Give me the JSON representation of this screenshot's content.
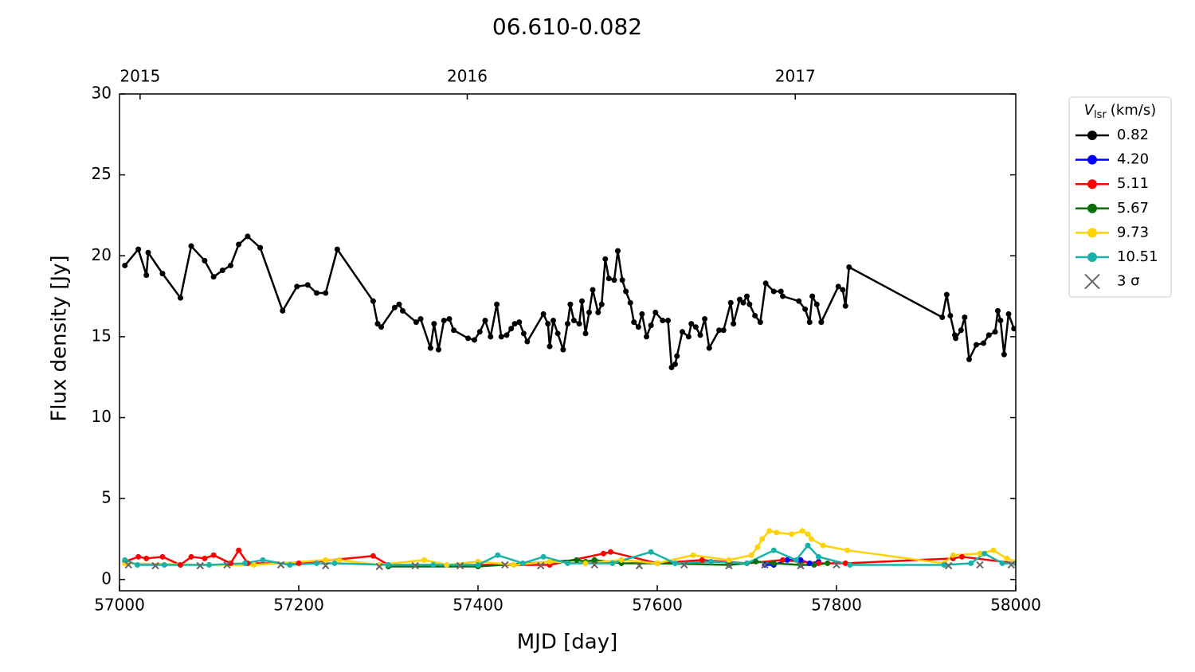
{
  "chart_data": {
    "type": "line",
    "title": "06.610-0.082",
    "xlabel": "MJD [day]",
    "ylabel": "Flux density [Jy]",
    "xlim": [
      57000,
      58000
    ],
    "xticks": [
      57000,
      57200,
      57400,
      57600,
      57800,
      58000
    ],
    "x2lim": [
      57000,
      58000
    ],
    "x2ticks": [
      {
        "value": 57023,
        "label": "2015"
      },
      {
        "value": 57388,
        "label": "2016"
      },
      {
        "value": 57754,
        "label": "2017"
      }
    ],
    "ylim": [
      -0.7,
      30
    ],
    "yticks": [
      0,
      5,
      10,
      15,
      20,
      25,
      30
    ],
    "grid": false,
    "legend": "outside right",
    "legend_title": {
      "symbol": "V",
      "subscript": "lsr",
      "unit": "(km/s)"
    },
    "series": [
      {
        "name": "0.82",
        "color": "#000000",
        "marker": "o",
        "line": true,
        "x": [
          57006,
          57021,
          57030,
          57032,
          57048,
          57068,
          57080,
          57095,
          57105,
          57115,
          57124,
          57133,
          57143,
          57157,
          57182,
          57198,
          57210,
          57220,
          57230,
          57243,
          57283,
          57288,
          57292,
          57307,
          57312,
          57316,
          57331,
          57336,
          57347,
          57351,
          57356,
          57362,
          57368,
          57373,
          57389,
          57396,
          57402,
          57408,
          57414,
          57421,
          57426,
          57432,
          57437,
          57441,
          57446,
          57451,
          57455,
          57473,
          57478,
          57480,
          57484,
          57489,
          57495,
          57500,
          57503,
          57507,
          57513,
          57516,
          57520,
          57524,
          57528,
          57534,
          57538,
          57542,
          57546,
          57552,
          57556,
          57561,
          57565,
          57570,
          57574,
          57579,
          57583,
          57588,
          57593,
          57598,
          57606,
          57612,
          57616,
          57620,
          57622,
          57628,
          57635,
          57638,
          57643,
          57648,
          57653,
          57658,
          57669,
          57674,
          57682,
          57685,
          57692,
          57696,
          57700,
          57703,
          57709,
          57715,
          57721,
          57730,
          57738,
          57740,
          57758,
          57765,
          57770,
          57773,
          57778,
          57783,
          57802,
          57807,
          57810,
          57814,
          57918,
          57923,
          57927,
          57932,
          57933,
          57939,
          57943,
          57948,
          57956,
          57964,
          57970,
          57977,
          57980,
          57983,
          57987,
          57992,
          57998
        ],
        "values": [
          19.4,
          20.4,
          18.8,
          20.2,
          18.9,
          17.4,
          20.6,
          19.7,
          18.7,
          19.1,
          19.4,
          20.7,
          21.2,
          20.5,
          16.6,
          18.1,
          18.2,
          17.7,
          17.7,
          20.4,
          17.2,
          15.8,
          15.6,
          16.8,
          17.0,
          16.6,
          15.9,
          16.1,
          14.3,
          15.8,
          14.2,
          16.0,
          16.1,
          15.4,
          14.9,
          14.8,
          15.3,
          16.0,
          15.0,
          17.0,
          15.0,
          15.1,
          15.5,
          15.8,
          15.9,
          15.2,
          14.7,
          16.4,
          15.8,
          14.4,
          16.0,
          15.2,
          14.2,
          15.8,
          17.0,
          16.0,
          15.8,
          17.2,
          15.2,
          16.5,
          17.9,
          16.5,
          17.0,
          19.8,
          18.6,
          18.5,
          20.3,
          18.5,
          17.8,
          17.1,
          15.9,
          15.6,
          16.4,
          15.0,
          15.7,
          16.5,
          16.0,
          16.0,
          13.1,
          13.3,
          13.8,
          15.3,
          15.0,
          15.8,
          15.6,
          15.1,
          16.1,
          14.3,
          15.4,
          15.4,
          17.1,
          15.8,
          17.3,
          17.1,
          17.5,
          17.0,
          16.3,
          15.9,
          18.3,
          17.8,
          17.8,
          17.5,
          17.2,
          16.7,
          15.9,
          17.5,
          17.0,
          15.9,
          18.1,
          17.9,
          16.9,
          19.3,
          16.2,
          17.6,
          16.3,
          15.1,
          14.9,
          15.4,
          16.2,
          13.6,
          14.5,
          14.6,
          15.1,
          15.3,
          16.6,
          16.0,
          13.9,
          16.4,
          15.5
        ]
      },
      {
        "name": "4.20",
        "color": "#0000ff",
        "marker": "o",
        "line": true,
        "x": [
          57720,
          57730,
          57745,
          57760,
          57770,
          57780
        ],
        "values": [
          0.9,
          0.9,
          1.2,
          1.2,
          1.0,
          1.1
        ]
      },
      {
        "name": "5.11",
        "color": "#ff0000",
        "marker": "o",
        "line": true,
        "x": [
          57006,
          57021,
          57030,
          57048,
          57068,
          57080,
          57095,
          57105,
          57124,
          57133,
          57143,
          57200,
          57283,
          57300,
          57400,
          57480,
          57540,
          57548,
          57600,
          57650,
          57700,
          57740,
          57780,
          57810,
          57930,
          57940,
          58000
        ],
        "values": [
          1.1,
          1.4,
          1.3,
          1.4,
          0.9,
          1.4,
          1.3,
          1.5,
          1.0,
          1.8,
          1.0,
          1.0,
          1.45,
          0.9,
          0.9,
          0.9,
          1.6,
          1.7,
          1.0,
          1.2,
          1.0,
          1.2,
          1.0,
          1.0,
          1.3,
          1.4,
          1.0
        ]
      },
      {
        "name": "5.67",
        "color": "#0a6e0a",
        "marker": "o",
        "line": true,
        "x": [
          57300,
          57400,
          57510,
          57520,
          57530,
          57560,
          57600,
          57680,
          57700,
          57710,
          57730,
          57760,
          57775,
          57790
        ],
        "values": [
          0.8,
          0.8,
          1.2,
          1.1,
          1.2,
          1.0,
          1.0,
          0.9,
          1.0,
          1.1,
          1.0,
          0.9,
          0.9,
          1.0
        ]
      },
      {
        "name": "9.73",
        "color": "#ffd200",
        "marker": "o",
        "line": true,
        "x": [
          57006,
          57100,
          57150,
          57230,
          57245,
          57290,
          57340,
          57365,
          57400,
          57440,
          57480,
          57520,
          57560,
          57600,
          57640,
          57680,
          57705,
          57712,
          57717,
          57725,
          57733,
          57750,
          57762,
          57768,
          57772,
          57785,
          57812,
          57920,
          57930,
          57960,
          57975,
          57990,
          58000
        ],
        "values": [
          1.0,
          0.9,
          0.9,
          1.2,
          1.2,
          0.9,
          1.2,
          0.9,
          1.1,
          0.9,
          1.1,
          1.0,
          1.2,
          1.0,
          1.5,
          1.2,
          1.5,
          2.0,
          2.5,
          3.0,
          2.9,
          2.8,
          3.0,
          2.8,
          2.5,
          2.1,
          1.8,
          1.0,
          1.5,
          1.6,
          1.8,
          1.3,
          1.1
        ]
      },
      {
        "name": "10.51",
        "color": "#17b3ab",
        "marker": "o",
        "line": true,
        "x": [
          57006,
          57020,
          57050,
          57100,
          57140,
          57160,
          57190,
          57220,
          57240,
          57300,
          57350,
          57400,
          57422,
          57450,
          57473,
          57500,
          57550,
          57593,
          57620,
          57660,
          57700,
          57730,
          57755,
          57768,
          57780,
          57815,
          57920,
          57950,
          57965,
          57985,
          58000
        ],
        "values": [
          1.2,
          0.9,
          0.9,
          0.9,
          1.0,
          1.2,
          0.9,
          1.0,
          1.0,
          0.9,
          0.9,
          0.9,
          1.5,
          1.0,
          1.4,
          1.0,
          1.0,
          1.7,
          1.0,
          1.1,
          1.0,
          1.8,
          1.2,
          2.1,
          1.4,
          0.9,
          0.9,
          1.0,
          1.6,
          1.0,
          1.0
        ]
      },
      {
        "name": "3 σ",
        "color": "#666666",
        "marker": "x",
        "line": false,
        "x": [
          57010,
          57040,
          57090,
          57120,
          57180,
          57230,
          57290,
          57330,
          57380,
          57430,
          57470,
          57530,
          57580,
          57630,
          57680,
          57720,
          57760,
          57800,
          57925,
          57960,
          57995
        ],
        "values": [
          0.9,
          0.85,
          0.85,
          0.9,
          0.9,
          0.85,
          0.8,
          0.85,
          0.85,
          0.9,
          0.85,
          0.9,
          0.85,
          0.9,
          0.85,
          0.9,
          0.85,
          0.9,
          0.85,
          0.9,
          0.9
        ]
      }
    ]
  }
}
